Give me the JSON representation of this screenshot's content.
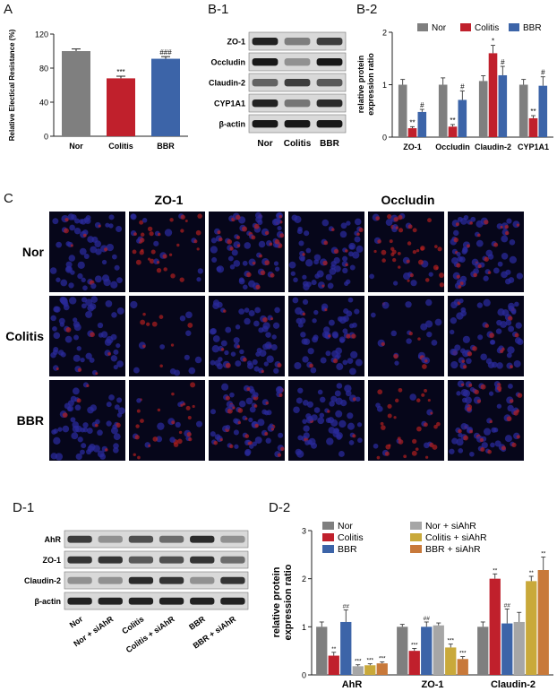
{
  "panels": {
    "a": "A",
    "b1": "B-1",
    "b2": "B-2",
    "c": "C",
    "d1": "D-1",
    "d2": "D-2"
  },
  "colors": {
    "Nor": "#7f7f7f",
    "Colitis": "#c0202c",
    "BBR": "#3c64a8",
    "Nor + siAhR": "#a6a6a6",
    "Colitis + siAhR": "#c9a93a",
    "BBR + siAhR": "#c8793a",
    "nuclear": "#2a2a9a",
    "stain": "#b02020"
  },
  "chart_data": [
    {
      "id": "A",
      "type": "bar",
      "categories": [
        "Nor",
        "Colitis",
        "BBR"
      ],
      "values": [
        100,
        68,
        91
      ],
      "errors": [
        2.5,
        2.5,
        2.5
      ],
      "sig": [
        "",
        "***",
        "###"
      ],
      "ylabel": "Relative Electical Resistance (%)",
      "ylim": [
        0,
        120
      ],
      "yticks": [
        0,
        40,
        80,
        120
      ]
    },
    {
      "id": "B-2",
      "type": "bar",
      "categories": [
        "ZO-1",
        "Occludin",
        "Claudin-2",
        "CYP1A1"
      ],
      "series": [
        {
          "name": "Nor",
          "values": [
            1.0,
            1.0,
            1.07,
            1.0
          ],
          "errors": [
            0.1,
            0.13,
            0.1,
            0.1
          ],
          "sig": [
            "",
            "",
            "",
            ""
          ]
        },
        {
          "name": "Colitis",
          "values": [
            0.17,
            0.2,
            1.6,
            0.36
          ],
          "errors": [
            0.03,
            0.04,
            0.15,
            0.05
          ],
          "sig": [
            "**",
            "**",
            "*",
            "**"
          ]
        },
        {
          "name": "BBR",
          "values": [
            0.48,
            0.71,
            1.18,
            0.98
          ],
          "errors": [
            0.05,
            0.17,
            0.17,
            0.17
          ],
          "sig": [
            "#",
            "#",
            "#",
            "#"
          ]
        }
      ],
      "ylabel": "relative protein expression ratio",
      "ylim": [
        0,
        2
      ],
      "yticks": [
        0,
        1,
        2
      ],
      "legend_position": "top"
    },
    {
      "id": "D-2",
      "type": "bar",
      "categories": [
        "AhR",
        "ZO-1",
        "Claudin-2"
      ],
      "series": [
        {
          "name": "Nor",
          "values": [
            1.0,
            1.0,
            1.0
          ],
          "errors": [
            0.1,
            0.05,
            0.1
          ],
          "sig": [
            "",
            "",
            ""
          ]
        },
        {
          "name": "Colitis",
          "values": [
            0.4,
            0.5,
            2.0
          ],
          "errors": [
            0.07,
            0.05,
            0.1
          ],
          "sig": [
            "**",
            "***",
            "**"
          ]
        },
        {
          "name": "BBR",
          "values": [
            1.1,
            1.0,
            1.07
          ],
          "errors": [
            0.25,
            0.1,
            0.3
          ],
          "sig": [
            "##",
            "##",
            "##"
          ]
        },
        {
          "name": "Nor + siAhR",
          "values": [
            0.18,
            1.03,
            1.1
          ],
          "errors": [
            0.03,
            0.05,
            0.2
          ],
          "sig": [
            "***",
            "",
            ""
          ]
        },
        {
          "name": "Colitis + siAhR",
          "values": [
            0.2,
            0.57,
            1.95
          ],
          "errors": [
            0.03,
            0.07,
            0.1
          ],
          "sig": [
            "***",
            "***",
            "**"
          ]
        },
        {
          "name": "BBR + siAhR",
          "values": [
            0.24,
            0.33,
            2.18
          ],
          "errors": [
            0.03,
            0.05,
            0.27
          ],
          "sig": [
            "***",
            "***",
            "**"
          ]
        }
      ],
      "ylabel": "relative protein expression ratio",
      "ylim": [
        0,
        3
      ],
      "yticks": [
        0,
        1,
        2,
        3
      ],
      "legend_position": "top-left"
    }
  ],
  "blot_b1": {
    "rows": [
      "ZO-1",
      "Occludin",
      "Claudin-2",
      "CYP1A1",
      "β-actin"
    ],
    "lanes": [
      "Nor",
      "Colitis",
      "BBR"
    ],
    "intensity": [
      [
        0.9,
        0.4,
        0.75
      ],
      [
        0.95,
        0.3,
        0.95
      ],
      [
        0.55,
        0.75,
        0.6
      ],
      [
        0.9,
        0.45,
        0.85
      ],
      [
        0.95,
        0.95,
        0.95
      ]
    ]
  },
  "micro_c": {
    "stains": [
      "ZO-1",
      "Occludin"
    ],
    "groups": [
      "Nor",
      "Colitis",
      "BBR"
    ],
    "red_level": [
      [
        0.15,
        0.55,
        0.55,
        0.15,
        0.6,
        0.55
      ],
      [
        0.12,
        0.15,
        0.2,
        0.12,
        0.08,
        0.15
      ],
      [
        0.15,
        0.4,
        0.5,
        0.15,
        0.45,
        0.45
      ]
    ]
  },
  "blot_d1": {
    "rows": [
      "AhR",
      "ZO-1",
      "Claudin-2",
      "β-actin"
    ],
    "lanes": [
      "Nor",
      "Nor + siAhR",
      "Colitis",
      "Colitis + siAhR",
      "BBR",
      "BBR + siAhR"
    ],
    "intensity": [
      [
        0.75,
        0.3,
        0.65,
        0.5,
        0.85,
        0.3
      ],
      [
        0.8,
        0.8,
        0.6,
        0.65,
        0.8,
        0.5
      ],
      [
        0.3,
        0.3,
        0.85,
        0.8,
        0.3,
        0.8
      ],
      [
        0.9,
        0.9,
        0.9,
        0.9,
        0.9,
        0.9
      ]
    ]
  }
}
